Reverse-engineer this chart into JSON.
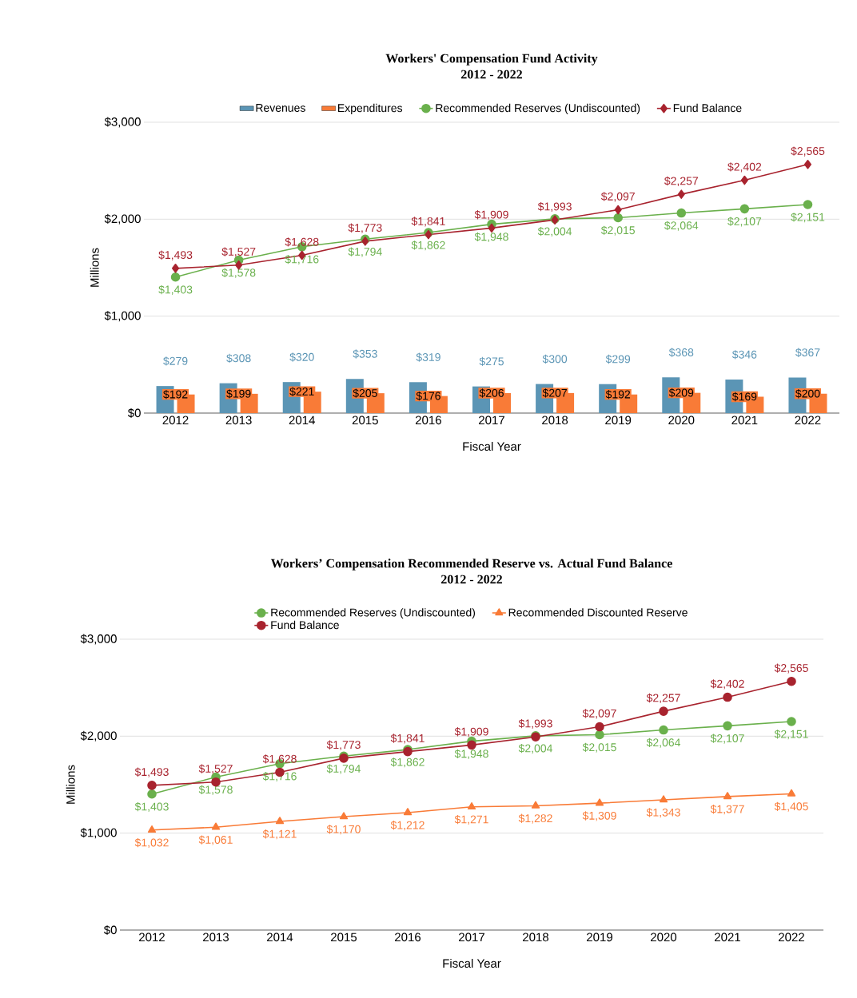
{
  "chart_data": [
    {
      "type": "bar",
      "title": "Workers' Compensation Fund Activity",
      "subtitle": "2012 - 2022",
      "xlabel": "Fiscal Year",
      "ylabel": "Millions",
      "categories": [
        "2012",
        "2013",
        "2014",
        "2015",
        "2016",
        "2017",
        "2018",
        "2019",
        "2020",
        "2021",
        "2022"
      ],
      "series": [
        {
          "name": "Revenues",
          "type": "bar",
          "color": "#5b95b5",
          "values": [
            279,
            308,
            320,
            353,
            319,
            275,
            300,
            299,
            368,
            346,
            367
          ],
          "value_labels": [
            "$279",
            "$308",
            "$320",
            "$353",
            "$319",
            "$275",
            "$300",
            "$299",
            "$368",
            "$346",
            "$367"
          ]
        },
        {
          "name": "Expenditures",
          "type": "bar",
          "color": "#f97b37",
          "values": [
            192,
            199,
            221,
            205,
            176,
            206,
            207,
            192,
            209,
            169,
            200
          ],
          "value_labels": [
            "$192",
            "$199",
            "$221",
            "$205",
            "$176",
            "$206",
            "$207",
            "$192",
            "$209",
            "$169",
            "$200"
          ]
        },
        {
          "name": "Recommended Reserves (Undiscounted)",
          "type": "line",
          "marker": "circle",
          "color": "#6ab04c",
          "values": [
            1403,
            1578,
            1716,
            1794,
            1862,
            1948,
            2004,
            2015,
            2064,
            2107,
            2151
          ],
          "value_labels": [
            "$1,403",
            "$1,578",
            "$1,716",
            "$1,794",
            "$1,862",
            "$1,948",
            "$2,004",
            "$2,015",
            "$2,064",
            "$2,107",
            "$2,151"
          ]
        },
        {
          "name": "Fund Balance",
          "type": "line",
          "marker": "diamond",
          "color": "#a8232e",
          "values": [
            1493,
            1527,
            1628,
            1773,
            1841,
            1909,
            1993,
            2097,
            2257,
            2402,
            2565
          ],
          "value_labels": [
            "$1,493",
            "$1,527",
            "$1,628",
            "$1,773",
            "$1,841",
            "$1,909",
            "$1,993",
            "$2,097",
            "$2,257",
            "$2,402",
            "$2,565"
          ]
        }
      ],
      "ylim": [
        0,
        3000
      ],
      "yticks": [
        {
          "value": 0,
          "label": "$0"
        },
        {
          "value": 1000,
          "label": "$1,000"
        },
        {
          "value": 2000,
          "label": "$2,000"
        },
        {
          "value": 3000,
          "label": "$3,000"
        }
      ],
      "grid": "y",
      "legend": "top"
    },
    {
      "type": "line",
      "title": "Workers’ Compensation Recommended Reserve vs. Actual Fund Balance",
      "subtitle": "2012 - 2022",
      "xlabel": "Fiscal Year",
      "ylabel": "Millions",
      "categories": [
        "2012",
        "2013",
        "2014",
        "2015",
        "2016",
        "2017",
        "2018",
        "2019",
        "2020",
        "2021",
        "2022"
      ],
      "series": [
        {
          "name": "Recommended Reserves (Undiscounted)",
          "marker": "circle",
          "color": "#6ab04c",
          "values": [
            1403,
            1578,
            1716,
            1794,
            1862,
            1948,
            2004,
            2015,
            2064,
            2107,
            2151
          ],
          "value_labels": [
            "$1,403",
            "$1,578",
            "$1,716",
            "$1,794",
            "$1,862",
            "$1,948",
            "$2,004",
            "$2,015",
            "$2,064",
            "$2,107",
            "$2,151"
          ]
        },
        {
          "name": "Recommended Discounted Reserve",
          "marker": "triangle",
          "color": "#f97b37",
          "values": [
            1032,
            1061,
            1121,
            1170,
            1212,
            1271,
            1282,
            1309,
            1343,
            1377,
            1405
          ],
          "value_labels": [
            "$1,032",
            "$1,061",
            "$1,121",
            "$1,170",
            "$1,212",
            "$1,271",
            "$1,282",
            "$1,309",
            "$1,343",
            "$1,377",
            "$1,405"
          ]
        },
        {
          "name": "Fund Balance",
          "marker": "circle",
          "color": "#a8232e",
          "values": [
            1493,
            1527,
            1628,
            1773,
            1841,
            1909,
            1993,
            2097,
            2257,
            2402,
            2565
          ],
          "value_labels": [
            "$1,493",
            "$1,527",
            "$1,628",
            "$1,773",
            "$1,841",
            "$1,909",
            "$1,993",
            "$2,097",
            "$2,257",
            "$2,402",
            "$2,565"
          ]
        }
      ],
      "ylim": [
        0,
        3000
      ],
      "yticks": [
        {
          "value": 0,
          "label": "$0"
        },
        {
          "value": 1000,
          "label": "$1,000"
        },
        {
          "value": 2000,
          "label": "$2,000"
        },
        {
          "value": 3000,
          "label": "$3,000"
        }
      ],
      "grid": "y",
      "legend": "top"
    }
  ]
}
